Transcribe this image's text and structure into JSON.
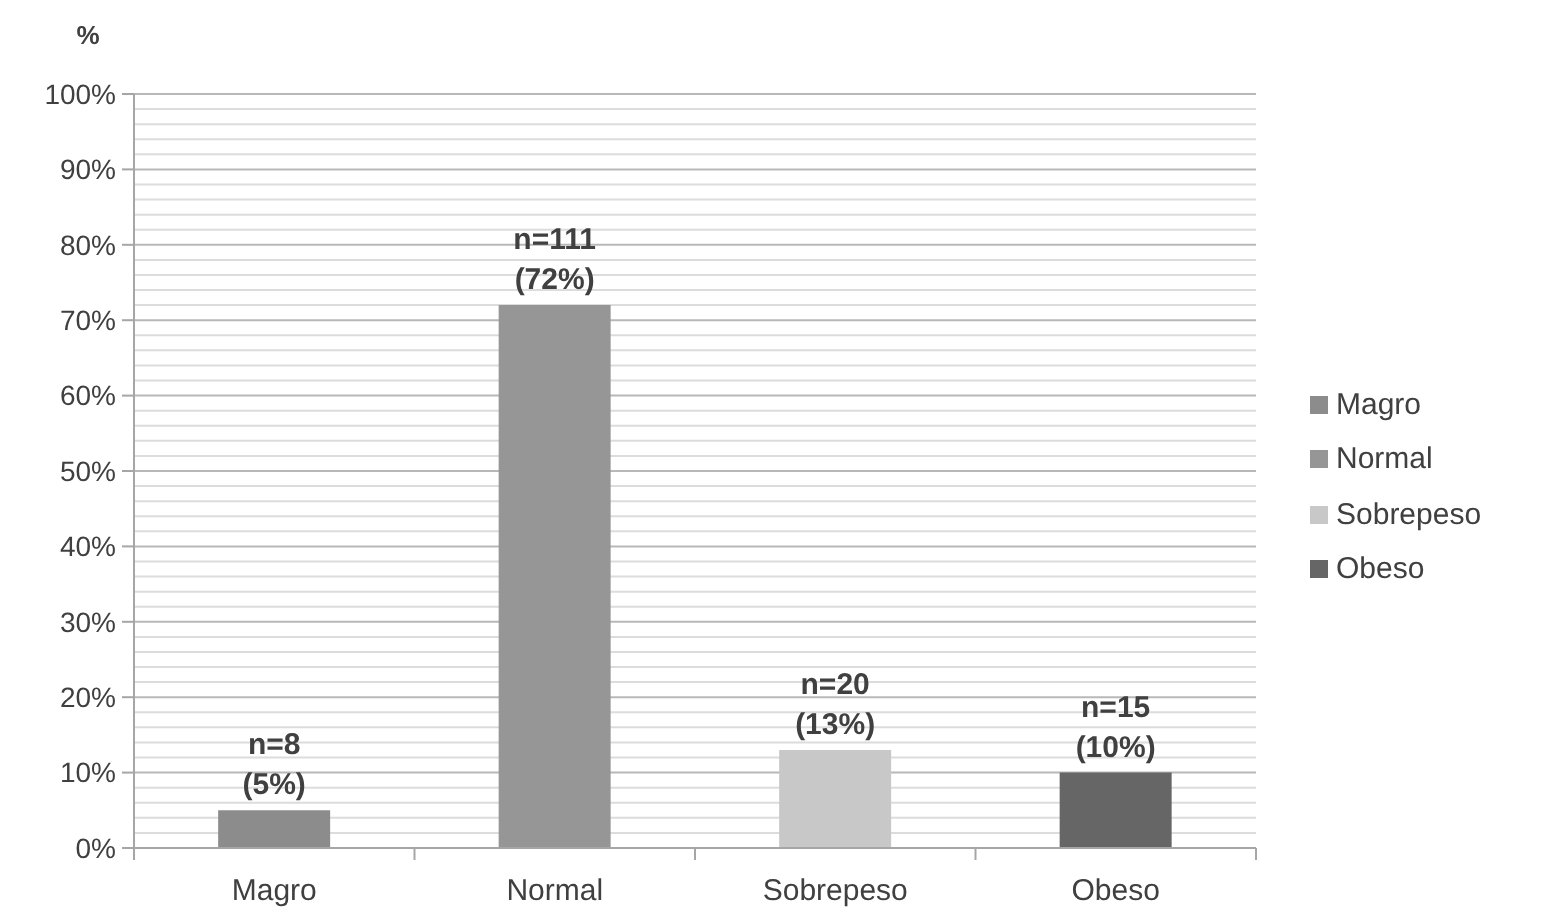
{
  "chart_data": {
    "type": "bar",
    "ylabel": "%",
    "categories": [
      "Magro",
      "Normal",
      "Sobrepeso",
      "Obeso"
    ],
    "stacked": true,
    "series": [
      {
        "name": "Magro",
        "color": "#8c8c8c",
        "values": [
          5,
          null,
          null,
          null
        ],
        "value_labels": [
          "n=8\n(5%)",
          null,
          null,
          null
        ]
      },
      {
        "name": "Normal",
        "color": "#969696",
        "values": [
          null,
          72,
          null,
          null
        ],
        "value_labels": [
          null,
          "n=111\n(72%)",
          null,
          null
        ]
      },
      {
        "name": "Sobrepeso",
        "color": "#c8c8c8",
        "values": [
          null,
          null,
          13,
          null
        ],
        "value_labels": [
          null,
          null,
          "n=20\n(13%)",
          null
        ]
      },
      {
        "name": "Obeso",
        "color": "#666666",
        "values": [
          null,
          null,
          null,
          10
        ],
        "value_labels": [
          null,
          null,
          null,
          "n=15\n(10%)"
        ]
      }
    ],
    "ylim": [
      0,
      100
    ],
    "yticks": [
      {
        "value": 0,
        "label": "0%"
      },
      {
        "value": 2,
        "label": null
      },
      {
        "value": 4,
        "label": null
      },
      {
        "value": 6,
        "label": null
      },
      {
        "value": 8,
        "label": null
      },
      {
        "value": 10,
        "label": "10%"
      },
      {
        "value": 12,
        "label": null
      },
      {
        "value": 14,
        "label": null
      },
      {
        "value": 16,
        "label": null
      },
      {
        "value": 18,
        "label": null
      },
      {
        "value": 20,
        "label": "20%"
      },
      {
        "value": 22,
        "label": null
      },
      {
        "value": 24,
        "label": null
      },
      {
        "value": 26,
        "label": null
      },
      {
        "value": 28,
        "label": null
      },
      {
        "value": 30,
        "label": "30%"
      },
      {
        "value": 32,
        "label": null
      },
      {
        "value": 34,
        "label": null
      },
      {
        "value": 36,
        "label": null
      },
      {
        "value": 38,
        "label": null
      },
      {
        "value": 40,
        "label": "40%"
      },
      {
        "value": 42,
        "label": null
      },
      {
        "value": 44,
        "label": null
      },
      {
        "value": 46,
        "label": null
      },
      {
        "value": 48,
        "label": null
      },
      {
        "value": 50,
        "label": "50%"
      },
      {
        "value": 52,
        "label": null
      },
      {
        "value": 54,
        "label": null
      },
      {
        "value": 56,
        "label": null
      },
      {
        "value": 58,
        "label": null
      },
      {
        "value": 60,
        "label": "60%"
      },
      {
        "value": 62,
        "label": null
      },
      {
        "value": 64,
        "label": null
      },
      {
        "value": 66,
        "label": null
      },
      {
        "value": 68,
        "label": null
      },
      {
        "value": 70,
        "label": "70%"
      },
      {
        "value": 72,
        "label": null
      },
      {
        "value": 74,
        "label": null
      },
      {
        "value": 76,
        "label": null
      },
      {
        "value": 78,
        "label": null
      },
      {
        "value": 80,
        "label": "80%"
      },
      {
        "value": 82,
        "label": null
      },
      {
        "value": 84,
        "label": null
      },
      {
        "value": 86,
        "label": null
      },
      {
        "value": 88,
        "label": null
      },
      {
        "value": 90,
        "label": "90%"
      },
      {
        "value": 92,
        "label": null
      },
      {
        "value": 94,
        "label": null
      },
      {
        "value": 96,
        "label": null
      },
      {
        "value": 98,
        "label": null
      },
      {
        "value": 100,
        "label": "100%"
      }
    ],
    "grid": "y",
    "legend": "right"
  }
}
